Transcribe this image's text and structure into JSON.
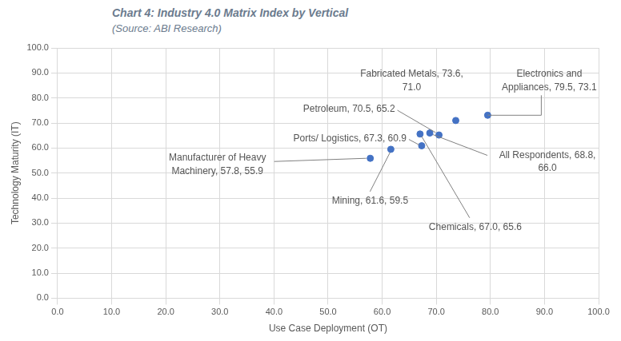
{
  "chart_data": {
    "type": "scatter",
    "title": "Chart 4: Industry 4.0 Matrix Index by Vertical",
    "subtitle": "(Source: ABI Research)",
    "x_label": "Use Case Deployment (OT)",
    "y_label": "Technology Maturity (IT)",
    "x": [
      73.6,
      79.5,
      70.5,
      67.3,
      57.8,
      61.6,
      67.0,
      68.8
    ],
    "values": [
      71.0,
      73.1,
      65.2,
      60.9,
      55.9,
      59.5,
      65.6,
      66.0
    ],
    "value_labels": [
      "Fabricated Metals, 73.6, 71.0",
      "Electronics and Appliances, 79.5, 73.1",
      "Petroleum, 70.5, 65.2",
      "Ports/ Logistics, 67.3, 60.9",
      "Manufacturer of Heavy Machinery, 57.8, 55.9",
      "Mining, 61.6, 59.5",
      "Chemicals, 67.0, 65.6",
      "All Respondents, 68.8, 66.0"
    ],
    "data_labels": true,
    "color": "#4472c4",
    "marker": "circle",
    "xlim": [
      0,
      100
    ],
    "xticks": [
      {
        "value": 0,
        "label": "0.0"
      },
      {
        "value": 10,
        "label": "10.0"
      },
      {
        "value": 20,
        "label": "20.0"
      },
      {
        "value": 30,
        "label": "30.0"
      },
      {
        "value": 40,
        "label": "40.0"
      },
      {
        "value": 50,
        "label": "50.0"
      },
      {
        "value": 60,
        "label": "60.0"
      },
      {
        "value": 70,
        "label": "70.0"
      },
      {
        "value": 80,
        "label": "80.0"
      },
      {
        "value": 90,
        "label": "90.0"
      },
      {
        "value": 100,
        "label": "100.0"
      }
    ],
    "ylim": [
      0,
      100
    ],
    "yticks": [
      {
        "value": 0,
        "label": "0.0"
      },
      {
        "value": 10,
        "label": "10.0"
      },
      {
        "value": 20,
        "label": "20.0"
      },
      {
        "value": 30,
        "label": "30.0"
      },
      {
        "value": 40,
        "label": "40.0"
      },
      {
        "value": 50,
        "label": "50.0"
      },
      {
        "value": 60,
        "label": "60.0"
      },
      {
        "value": 70,
        "label": "70.0"
      },
      {
        "value": 80,
        "label": "80.0"
      },
      {
        "value": 90,
        "label": "90.0"
      },
      {
        "value": 100,
        "label": "100.0"
      }
    ],
    "grid": true
  }
}
